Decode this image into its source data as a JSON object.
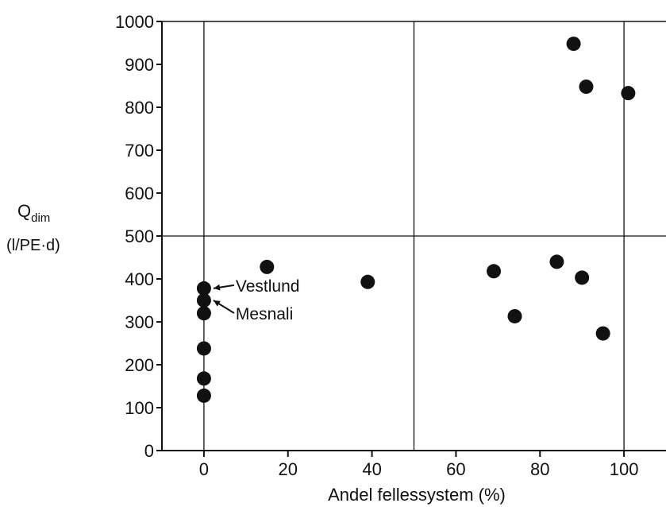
{
  "chart_data": {
    "type": "scatter",
    "title": "",
    "xlabel": "Andel fellessystem (%)",
    "ylabel": {
      "main": "Q",
      "subscript": "dim",
      "unit": "(l/PE·d)"
    },
    "xlim": [
      -10,
      110
    ],
    "ylim": [
      0,
      1000
    ],
    "xticks": [
      0,
      20,
      40,
      60,
      80,
      100
    ],
    "yticks": [
      0,
      100,
      200,
      300,
      400,
      500,
      600,
      700,
      800,
      900,
      1000
    ],
    "reference_lines": {
      "x": [
        0,
        50,
        100
      ],
      "y": [
        500
      ]
    },
    "points": [
      {
        "x": 0,
        "y": 378
      },
      {
        "x": 0,
        "y": 350
      },
      {
        "x": 0,
        "y": 320
      },
      {
        "x": 0,
        "y": 238
      },
      {
        "x": 0,
        "y": 168
      },
      {
        "x": 0,
        "y": 128
      },
      {
        "x": 15,
        "y": 428
      },
      {
        "x": 39,
        "y": 393
      },
      {
        "x": 69,
        "y": 418
      },
      {
        "x": 74,
        "y": 313
      },
      {
        "x": 84,
        "y": 440
      },
      {
        "x": 88,
        "y": 948
      },
      {
        "x": 90,
        "y": 403
      },
      {
        "x": 91,
        "y": 848
      },
      {
        "x": 95,
        "y": 273
      },
      {
        "x": 101,
        "y": 833
      }
    ],
    "annotations": [
      {
        "text": "Vestlund",
        "x": 0,
        "y": 378
      },
      {
        "text": "Mesnali",
        "x": 0,
        "y": 350
      }
    ]
  }
}
